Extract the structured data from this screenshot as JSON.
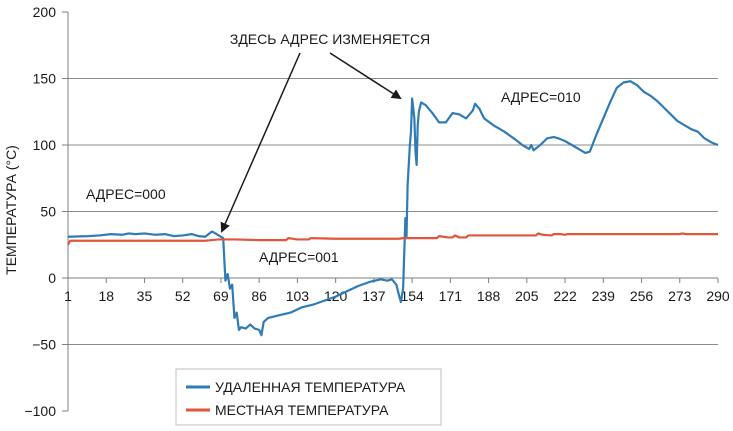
{
  "chart_data": {
    "type": "line",
    "ylabel": "ТЕМПЕРАТУРА (°C)",
    "ylim": [
      -100,
      200
    ],
    "xlim": [
      1,
      290
    ],
    "y_ticks": [
      -100,
      -50,
      0,
      50,
      100,
      150,
      200
    ],
    "y_tick_labels": [
      "−100",
      "−50",
      "0",
      "50",
      "100",
      "150",
      "200"
    ],
    "x_ticks": [
      1,
      18,
      35,
      52,
      69,
      86,
      103,
      120,
      137,
      154,
      171,
      188,
      205,
      222,
      239,
      256,
      273,
      290
    ],
    "x_tick_labels": [
      "1",
      "18",
      "35",
      "52",
      "69",
      "86",
      "103",
      "120",
      "137",
      "154",
      "171",
      "188",
      "205",
      "222",
      "239",
      "256",
      "273",
      "290"
    ],
    "gridlines_y": [
      -50,
      50,
      100,
      150
    ],
    "series": [
      {
        "name": "УДАЛЕННАЯ ТЕМПЕРАТУРА",
        "color": "#2e7bb6",
        "points": [
          [
            1,
            31
          ],
          [
            10,
            31.5
          ],
          [
            15,
            32
          ],
          [
            20,
            33
          ],
          [
            25,
            32.5
          ],
          [
            28,
            33.5
          ],
          [
            31,
            33
          ],
          [
            35,
            33.5
          ],
          [
            40,
            32.5
          ],
          [
            44,
            33
          ],
          [
            48,
            31.5
          ],
          [
            52,
            32
          ],
          [
            56,
            33
          ],
          [
            59,
            31.5
          ],
          [
            62,
            31
          ],
          [
            65,
            35
          ],
          [
            67,
            33
          ],
          [
            69,
            31
          ],
          [
            70,
            30
          ],
          [
            71,
            -2
          ],
          [
            72,
            3
          ],
          [
            73,
            -8
          ],
          [
            74,
            -5
          ],
          [
            75,
            -30
          ],
          [
            76,
            -26
          ],
          [
            77,
            -39
          ],
          [
            78,
            -37
          ],
          [
            80,
            -38
          ],
          [
            82,
            -35
          ],
          [
            84,
            -38
          ],
          [
            86,
            -39
          ],
          [
            87,
            -43
          ],
          [
            88,
            -33
          ],
          [
            90,
            -30
          ],
          [
            95,
            -28
          ],
          [
            100,
            -26
          ],
          [
            105,
            -22
          ],
          [
            110,
            -20
          ],
          [
            115,
            -17
          ],
          [
            120,
            -14
          ],
          [
            125,
            -10
          ],
          [
            130,
            -6
          ],
          [
            135,
            -3
          ],
          [
            140,
            -1
          ],
          [
            143,
            -2
          ],
          [
            145,
            -1
          ],
          [
            147,
            -5
          ],
          [
            148,
            -12
          ],
          [
            149,
            -18
          ],
          [
            150,
            -8
          ],
          [
            151,
            45
          ],
          [
            151.5,
            30
          ],
          [
            152,
            70
          ],
          [
            153,
            100
          ],
          [
            153.5,
            110
          ],
          [
            154,
            135
          ],
          [
            155,
            120
          ],
          [
            155.5,
            95
          ],
          [
            156,
            85
          ],
          [
            156.5,
            115
          ],
          [
            157,
            125
          ],
          [
            158,
            132
          ],
          [
            160,
            130
          ],
          [
            163,
            124
          ],
          [
            166,
            117
          ],
          [
            169,
            117
          ],
          [
            172,
            124
          ],
          [
            175,
            123
          ],
          [
            178,
            120
          ],
          [
            181,
            126
          ],
          [
            182,
            131
          ],
          [
            184,
            127
          ],
          [
            186,
            120
          ],
          [
            190,
            115
          ],
          [
            195,
            110
          ],
          [
            200,
            104
          ],
          [
            203,
            100
          ],
          [
            206,
            97
          ],
          [
            207,
            100
          ],
          [
            208,
            96
          ],
          [
            211,
            100
          ],
          [
            214,
            105
          ],
          [
            217,
            106
          ],
          [
            219,
            105
          ],
          [
            222,
            103
          ],
          [
            225,
            100
          ],
          [
            228,
            97
          ],
          [
            231,
            94
          ],
          [
            233,
            95
          ],
          [
            236,
            108
          ],
          [
            239,
            120
          ],
          [
            242,
            132
          ],
          [
            245,
            143
          ],
          [
            248,
            147
          ],
          [
            251,
            148
          ],
          [
            254,
            145
          ],
          [
            257,
            140
          ],
          [
            260,
            137
          ],
          [
            263,
            133
          ],
          [
            266,
            128
          ],
          [
            269,
            123
          ],
          [
            272,
            118
          ],
          [
            275,
            115
          ],
          [
            278,
            112
          ],
          [
            281,
            110
          ],
          [
            284,
            105
          ],
          [
            287,
            102
          ],
          [
            290,
            100
          ]
        ]
      },
      {
        "name": "МЕСТНАЯ ТЕМПЕРАТУРА",
        "color": "#e0563a",
        "points": [
          [
            1,
            25
          ],
          [
            2,
            28
          ],
          [
            20,
            28
          ],
          [
            52,
            28
          ],
          [
            62,
            28
          ],
          [
            65,
            28.5
          ],
          [
            68,
            29
          ],
          [
            75,
            29
          ],
          [
            86,
            28.5
          ],
          [
            98,
            28.5
          ],
          [
            99,
            30
          ],
          [
            103,
            29
          ],
          [
            108,
            29
          ],
          [
            109,
            30
          ],
          [
            120,
            29.5
          ],
          [
            137,
            29.5
          ],
          [
            148,
            29.5
          ],
          [
            150,
            30
          ],
          [
            165,
            30
          ],
          [
            166,
            31.5
          ],
          [
            170,
            30.5
          ],
          [
            172,
            30.5
          ],
          [
            173,
            32
          ],
          [
            175,
            30.5
          ],
          [
            178,
            30.5
          ],
          [
            179,
            32
          ],
          [
            188,
            32
          ],
          [
            205,
            32
          ],
          [
            209,
            32
          ],
          [
            210,
            33.5
          ],
          [
            212,
            32.5
          ],
          [
            216,
            32
          ],
          [
            217,
            33
          ],
          [
            220,
            33
          ],
          [
            222,
            32.5
          ],
          [
            223,
            33
          ],
          [
            239,
            33
          ],
          [
            256,
            33
          ],
          [
            273,
            33
          ],
          [
            274,
            33.5
          ],
          [
            276,
            33
          ],
          [
            290,
            33
          ]
        ]
      }
    ],
    "annotations": {
      "change_label": "ЗДЕСЬ АДРЕС ИЗМЕНЯЕТСЯ",
      "addr000": "АДРЕС=000",
      "addr001": "АДРЕС=001",
      "addr010": "АДРЕС=010"
    },
    "legend_position": "bottom-center"
  }
}
